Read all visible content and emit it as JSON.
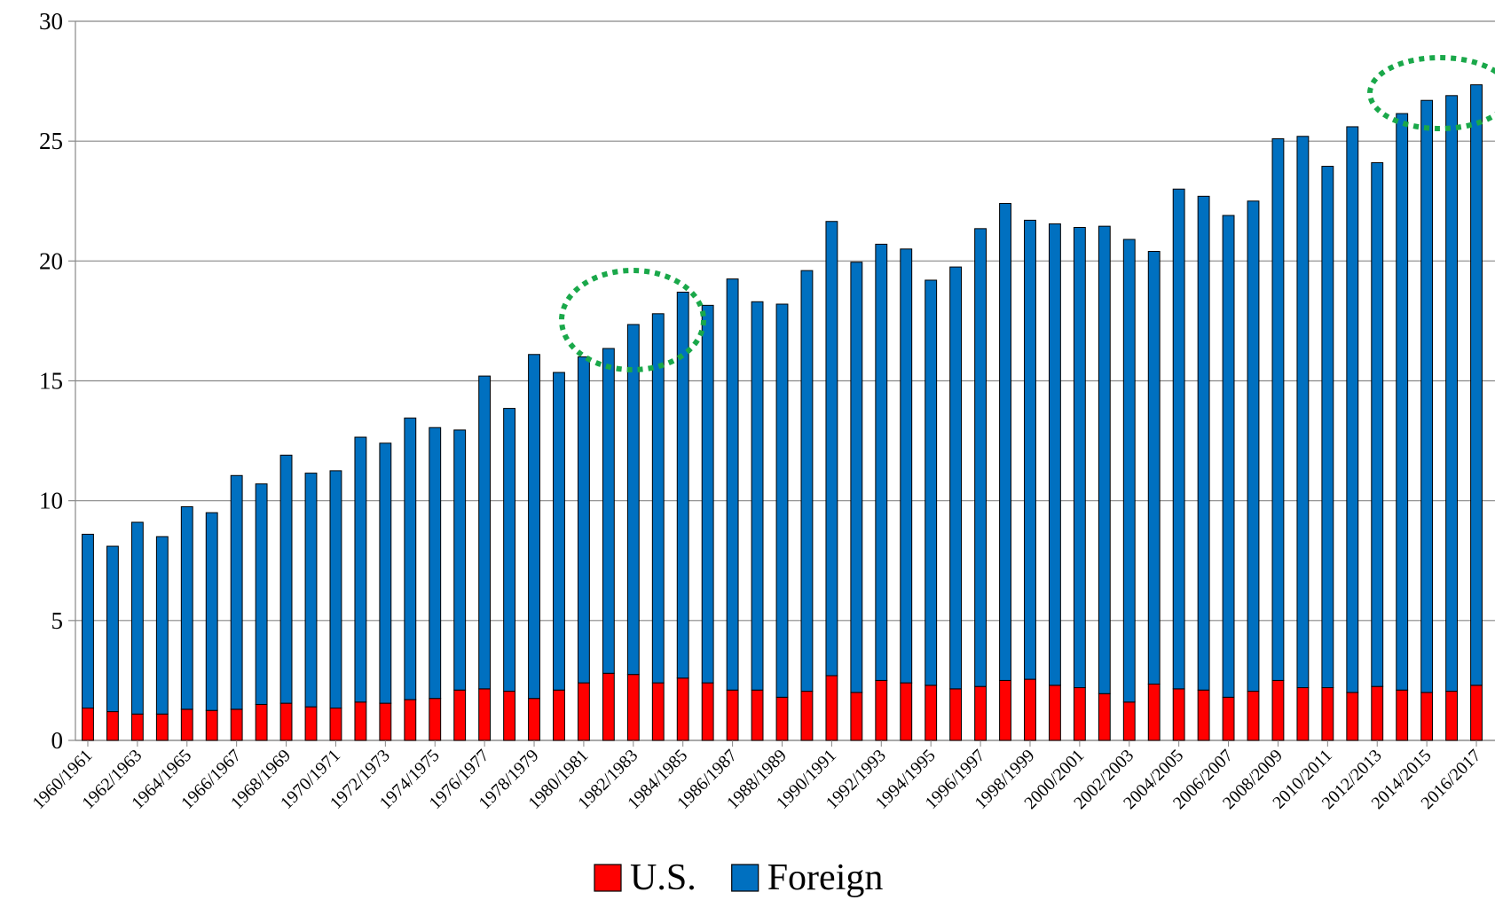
{
  "chart_data": {
    "type": "stacked_bar",
    "categories": [
      "1960/1961",
      null,
      "1962/1963",
      null,
      "1964/1965",
      null,
      "1966/1967",
      null,
      "1968/1969",
      null,
      "1970/1971",
      null,
      "1972/1973",
      null,
      "1974/1975",
      null,
      "1976/1977",
      null,
      "1978/1979",
      null,
      "1980/1981",
      null,
      "1982/1983",
      null,
      "1984/1985",
      null,
      "1986/1987",
      null,
      "1988/1989",
      null,
      "1990/1991",
      null,
      "1992/1993",
      null,
      "1994/1995",
      null,
      "1996/1997",
      null,
      "1998/1999",
      null,
      "2000/2001",
      null,
      "2002/2003",
      null,
      "2004/2005",
      null,
      "2006/2007",
      null,
      "2008/2009",
      null,
      "2010/2011",
      null,
      "2012/2013",
      null,
      "2014/2015",
      null,
      "2016/2017"
    ],
    "series": [
      {
        "name": "U.S.",
        "color": "#ff0000",
        "values": [
          1.35,
          1.2,
          1.1,
          1.1,
          1.3,
          1.25,
          1.3,
          1.5,
          1.55,
          1.4,
          1.35,
          1.6,
          1.55,
          1.7,
          1.75,
          2.1,
          2.15,
          2.05,
          1.75,
          2.1,
          2.4,
          2.8,
          2.75,
          2.4,
          2.6,
          2.4,
          2.1,
          2.1,
          1.8,
          2.05,
          2.7,
          2.0,
          2.5,
          2.4,
          2.3,
          2.15,
          2.25,
          2.5,
          2.55,
          2.3,
          2.2,
          1.95,
          1.6,
          2.35,
          2.15,
          2.1,
          1.8,
          2.05,
          2.5,
          2.2,
          2.2,
          2.0,
          2.25,
          2.1,
          2.0,
          2.05,
          2.3
        ]
      },
      {
        "name": "Foreign",
        "color": "#0070c0",
        "values": [
          7.25,
          6.9,
          8.0,
          7.4,
          8.45,
          8.25,
          9.75,
          9.2,
          10.35,
          9.75,
          9.9,
          11.05,
          10.85,
          11.75,
          11.3,
          10.85,
          13.05,
          11.8,
          14.35,
          13.25,
          13.6,
          13.55,
          14.6,
          15.4,
          16.1,
          15.75,
          17.15,
          16.2,
          16.4,
          17.55,
          18.95,
          17.95,
          18.2,
          18.1,
          16.9,
          17.6,
          19.1,
          19.9,
          19.15,
          19.25,
          19.2,
          19.5,
          19.3,
          18.05,
          20.85,
          20.6,
          20.1,
          20.45,
          22.6,
          23.0,
          21.75,
          23.6,
          21.85,
          24.05,
          24.7,
          24.85,
          25.05
        ]
      }
    ],
    "ylim": [
      0,
      30
    ],
    "yticks": [
      0,
      5,
      10,
      15,
      20,
      25,
      30
    ],
    "grid": true,
    "legend": "bottom"
  }
}
